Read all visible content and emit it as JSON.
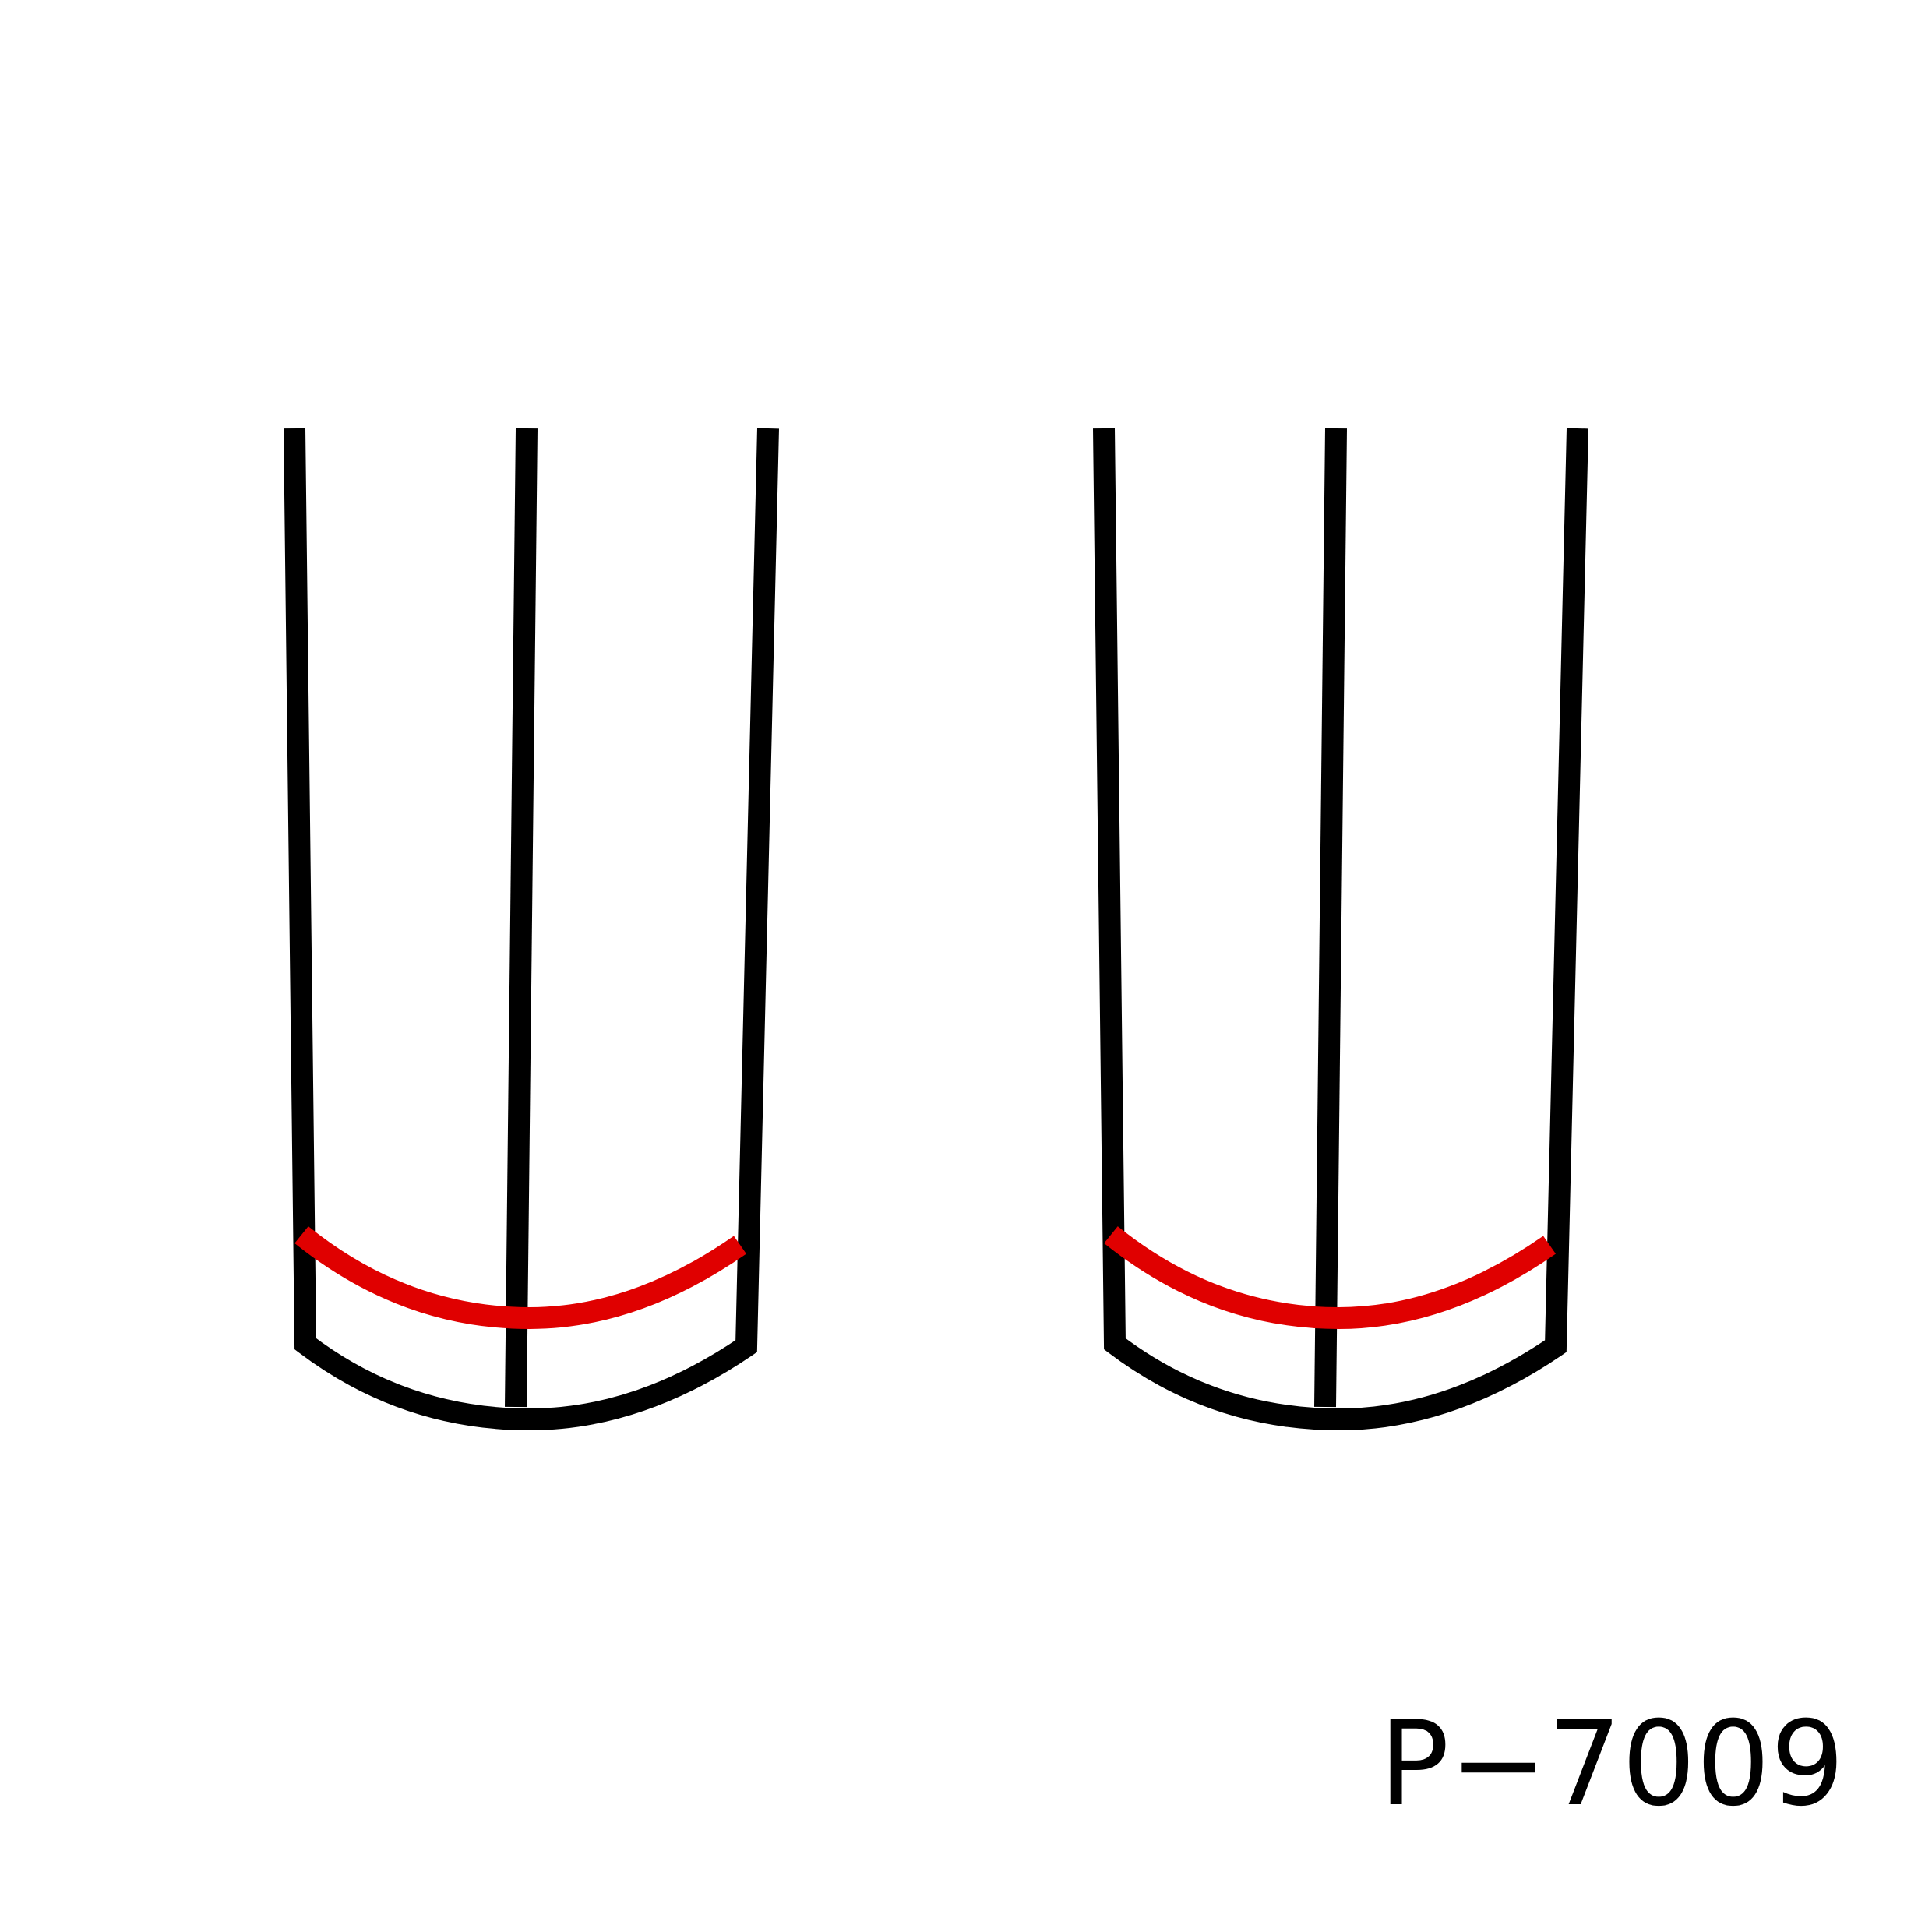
{
  "part_code": "P−7009",
  "colors": {
    "background": "#ffffff",
    "outline": "#000000",
    "highlight": "#e00000"
  },
  "figures": [
    {
      "id": "left",
      "outline_color": "#000000",
      "highlight_color": "#e00000"
    },
    {
      "id": "right",
      "outline_color": "#000000",
      "highlight_color": "#e00000"
    }
  ]
}
